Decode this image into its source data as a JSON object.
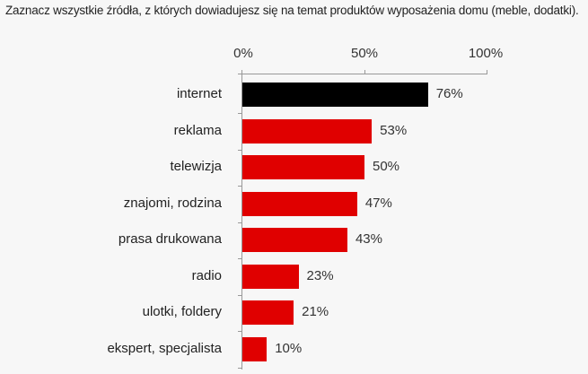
{
  "chart_data": {
    "type": "bar",
    "orientation": "horizontal",
    "title": "Zaznacz wszystkie źródła, z których dowiadujesz się na temat produktów wyposażenia domu (meble, dodatki).",
    "xlabel": "",
    "ylabel": "",
    "xlim": [
      0,
      100
    ],
    "x_ticks": [
      "0%",
      "50%",
      "100%"
    ],
    "x_axis_position": "top",
    "grid": false,
    "legend": null,
    "categories": [
      "internet",
      "reklama",
      "telewizja",
      "znajomi, rodzina",
      "prasa drukowana",
      "radio",
      "ulotki, foldery",
      "ekspert, specjalista"
    ],
    "values": [
      76,
      53,
      50,
      47,
      43,
      23,
      21,
      10
    ],
    "value_labels": [
      "76%",
      "53%",
      "50%",
      "47%",
      "43%",
      "23%",
      "21%",
      "10%"
    ],
    "colors": [
      "#000000",
      "#e00000",
      "#e00000",
      "#e00000",
      "#e00000",
      "#e00000",
      "#e00000",
      "#e00000"
    ]
  },
  "axis": {
    "ticks": [
      {
        "label": "0%",
        "value": 0
      },
      {
        "label": "50%",
        "value": 50
      },
      {
        "label": "100%",
        "value": 100
      }
    ]
  }
}
